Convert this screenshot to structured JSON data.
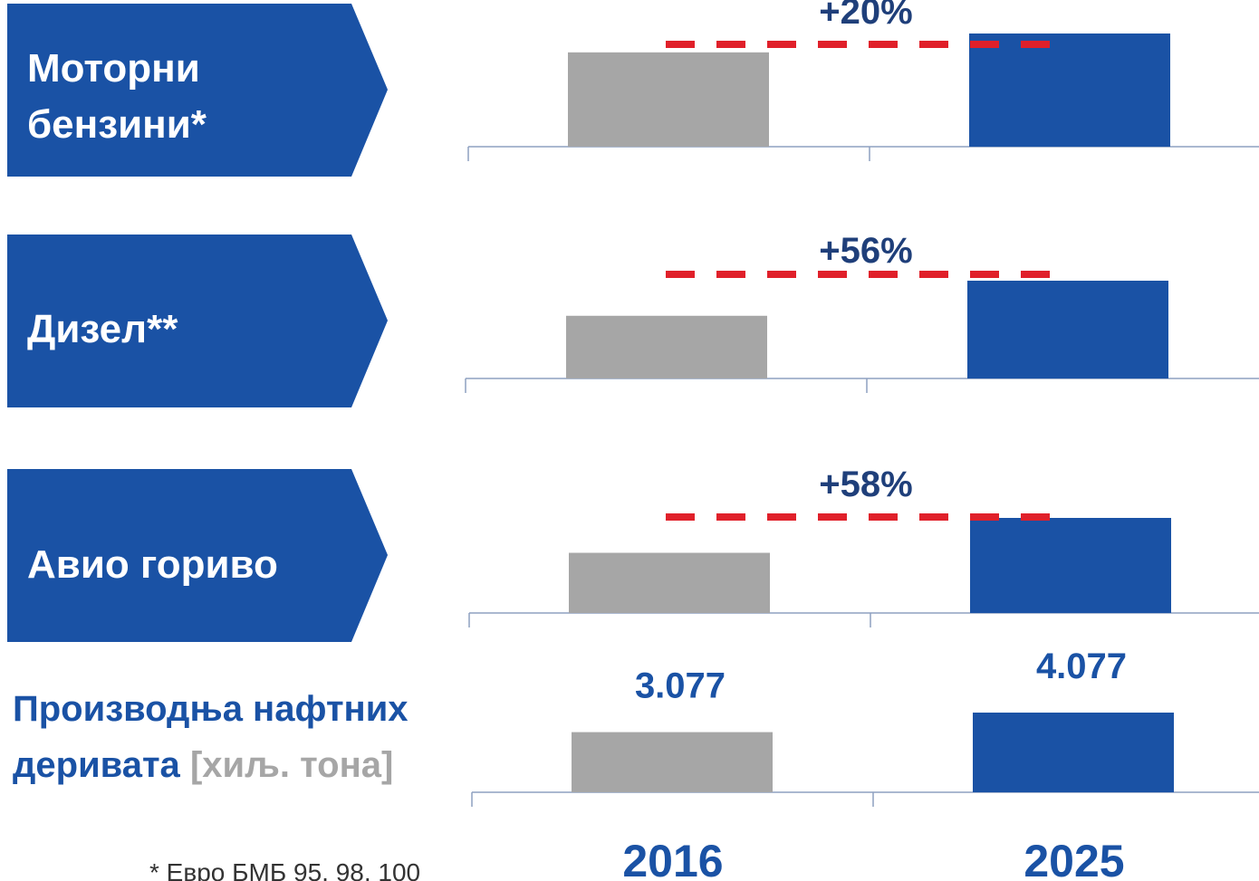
{
  "chart_data": [
    {
      "type": "bar",
      "label": "Моторни бензини*",
      "annotation": "+20%",
      "values": [
        100,
        120
      ],
      "colors": [
        "#a6a6a6",
        "#1a52a5"
      ]
    },
    {
      "type": "bar",
      "label": "Дизел**",
      "annotation": "+56%",
      "values": [
        100,
        156
      ],
      "colors": [
        "#a6a6a6",
        "#1a52a5"
      ]
    },
    {
      "type": "bar",
      "label": "Авио гориво",
      "annotation": "+58%",
      "values": [
        100,
        158
      ],
      "colors": [
        "#a6a6a6",
        "#1a52a5"
      ]
    },
    {
      "type": "bar",
      "title": "Производња нафтних деривата",
      "unit": "[хиљ. тона]",
      "categories": [
        "2016",
        "2025"
      ],
      "values": [
        3077,
        4077
      ],
      "value_labels": [
        "3.077",
        "4.077"
      ],
      "colors": [
        "#a6a6a6",
        "#1a52a5"
      ]
    }
  ],
  "footnote": "* Евро БМБ 95, 98, 100"
}
